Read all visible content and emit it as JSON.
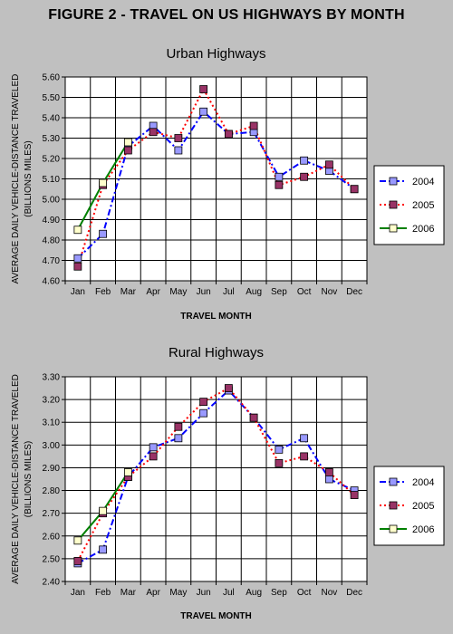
{
  "figure_title": "FIGURE 2 - TRAVEL ON US HIGHWAYS BY MONTH",
  "chart_data": [
    {
      "type": "line",
      "title": "Urban Highways",
      "xlabel": "TRAVEL MONTH",
      "ylabel_lines": [
        "AVERAGE DAILY VEHICLE-DISTANCE TRAVELED",
        "(BILLIONS MILES)"
      ],
      "categories": [
        "Jan",
        "Feb",
        "Mar",
        "Apr",
        "May",
        "Jun",
        "Jul",
        "Aug",
        "Sep",
        "Oct",
        "Nov",
        "Dec"
      ],
      "ylim": [
        4.6,
        5.6
      ],
      "yticks": [
        "4.60",
        "4.70",
        "4.80",
        "4.90",
        "5.00",
        "5.10",
        "5.20",
        "5.30",
        "5.40",
        "5.50",
        "5.60"
      ],
      "grid": true,
      "legend": "right",
      "series": [
        {
          "name": "2004",
          "color": "#0000ff",
          "marker_fill": "#9999ff",
          "dash": "dashdot",
          "values": [
            4.71,
            4.83,
            5.26,
            5.36,
            5.24,
            5.43,
            5.32,
            5.33,
            5.11,
            5.19,
            5.14,
            5.05
          ]
        },
        {
          "name": "2005",
          "color": "#ff0000",
          "marker_fill": "#993366",
          "dash": "dot",
          "values": [
            4.67,
            5.07,
            5.24,
            5.33,
            5.3,
            5.54,
            5.32,
            5.36,
            5.07,
            5.11,
            5.17,
            5.05
          ]
        },
        {
          "name": "2006",
          "color": "#008000",
          "marker_fill": "#ffffcc",
          "dash": "solid",
          "values": [
            4.85,
            5.08,
            5.28,
            null,
            null,
            null,
            null,
            null,
            null,
            null,
            null,
            null
          ]
        }
      ]
    },
    {
      "type": "line",
      "title": "Rural Highways",
      "xlabel": "TRAVEL MONTH",
      "ylabel_lines": [
        "AVERAGE DAILY VEHICLE-DISTANCE TRAVELED",
        "(BILLIONS MILES)"
      ],
      "categories": [
        "Jan",
        "Feb",
        "Mar",
        "Apr",
        "May",
        "Jun",
        "Jul",
        "Aug",
        "Sep",
        "Oct",
        "Nov",
        "Dec"
      ],
      "ylim": [
        2.4,
        3.3
      ],
      "yticks": [
        "2.40",
        "2.50",
        "2.60",
        "2.70",
        "2.80",
        "2.90",
        "3.00",
        "3.10",
        "3.20",
        "3.30"
      ],
      "grid": true,
      "legend": "right",
      "series": [
        {
          "name": "2004",
          "color": "#0000ff",
          "marker_fill": "#9999ff",
          "dash": "dashdot",
          "values": [
            2.48,
            2.54,
            2.86,
            2.99,
            3.03,
            3.14,
            3.24,
            3.12,
            2.98,
            3.03,
            2.85,
            2.8
          ]
        },
        {
          "name": "2005",
          "color": "#ff0000",
          "marker_fill": "#993366",
          "dash": "dot",
          "values": [
            2.49,
            2.7,
            2.86,
            2.95,
            3.08,
            3.19,
            3.25,
            3.12,
            2.92,
            2.95,
            2.88,
            2.78
          ]
        },
        {
          "name": "2006",
          "color": "#008000",
          "marker_fill": "#ffffcc",
          "dash": "solid",
          "values": [
            2.58,
            2.71,
            2.88,
            null,
            null,
            null,
            null,
            null,
            null,
            null,
            null,
            null
          ]
        }
      ]
    }
  ]
}
